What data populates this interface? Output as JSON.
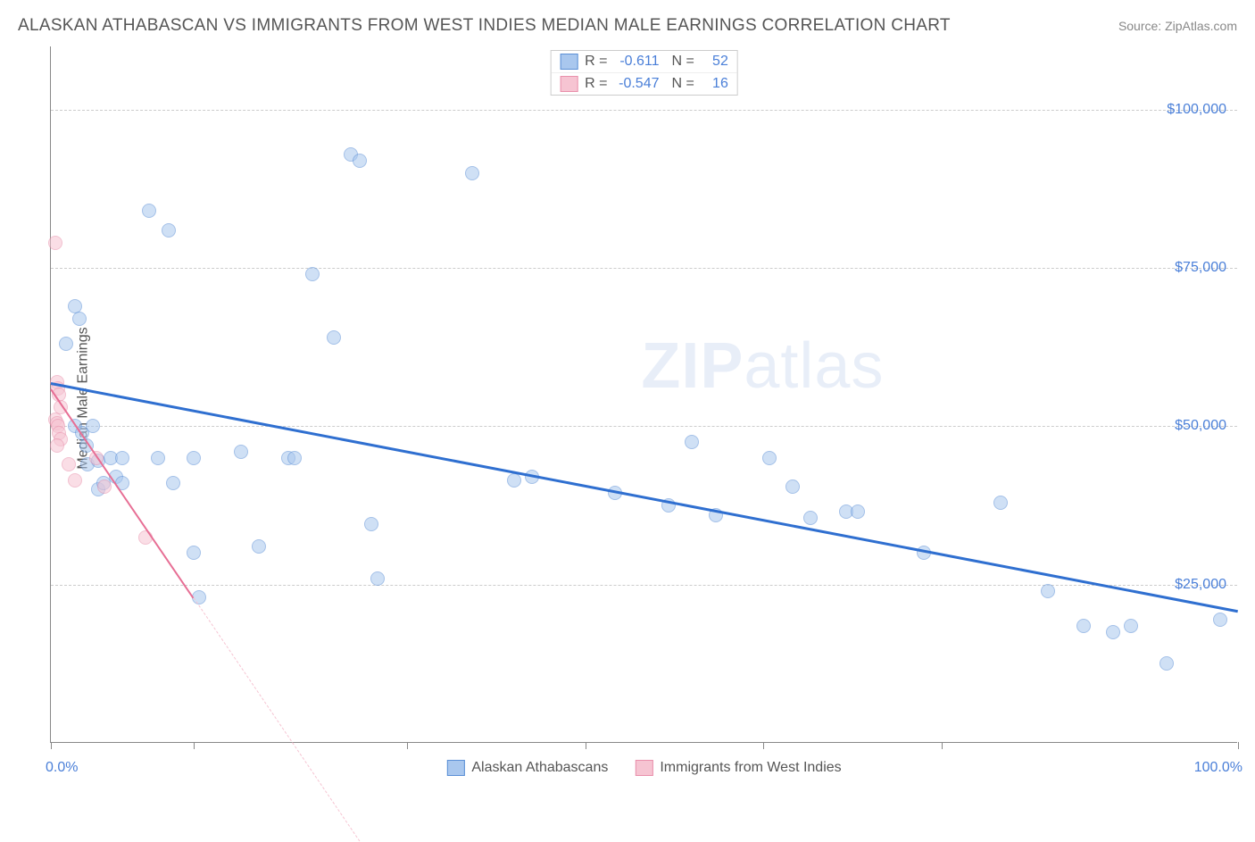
{
  "title": "ALASKAN ATHABASCAN VS IMMIGRANTS FROM WEST INDIES MEDIAN MALE EARNINGS CORRELATION CHART",
  "source": "Source: ZipAtlas.com",
  "ylabel": "Median Male Earnings",
  "watermark_a": "ZIP",
  "watermark_b": "atlas",
  "chart": {
    "type": "scatter",
    "xlim": [
      0,
      100
    ],
    "ylim": [
      0,
      110000
    ],
    "x_ticks": [
      0,
      12,
      30,
      45,
      60,
      75,
      100
    ],
    "x_tick_labels": {
      "0": "0.0%",
      "100": "100.0%"
    },
    "y_gridlines": [
      25000,
      50000,
      75000,
      100000
    ],
    "y_tick_labels": [
      "$25,000",
      "$50,000",
      "$75,000",
      "$100,000"
    ],
    "background_color": "#ffffff",
    "grid_color": "#cccccc",
    "axis_color": "#888888",
    "title_color": "#555555",
    "label_color": "#555555",
    "value_color": "#4a7fd8",
    "title_fontsize": 19,
    "label_fontsize": 16,
    "marker_radius": 8,
    "marker_opacity": 0.55
  },
  "series": [
    {
      "name": "Alaskan Athabascans",
      "fill_color": "#a9c7ee",
      "stroke_color": "#5b8fd6",
      "line_color": "#2f6fd0",
      "R": "-0.611",
      "N": "52",
      "trend": {
        "x1": 0,
        "y1": 57000,
        "x2": 100,
        "y2": 21000,
        "width": 2.5
      },
      "points": [
        [
          1.3,
          63000
        ],
        [
          2.0,
          69000
        ],
        [
          2.4,
          67000
        ],
        [
          2.0,
          50000
        ],
        [
          2.6,
          49000
        ],
        [
          3.0,
          47000
        ],
        [
          3.1,
          44000
        ],
        [
          3.5,
          50000
        ],
        [
          4.0,
          40000
        ],
        [
          4.0,
          44500
        ],
        [
          4.4,
          41000
        ],
        [
          5.0,
          45000
        ],
        [
          5.5,
          42000
        ],
        [
          6.0,
          45000
        ],
        [
          6.0,
          41000
        ],
        [
          8.3,
          84000
        ],
        [
          9.0,
          45000
        ],
        [
          9.9,
          81000
        ],
        [
          10.3,
          41000
        ],
        [
          12.0,
          45000
        ],
        [
          12.0,
          30000
        ],
        [
          12.5,
          23000
        ],
        [
          16.0,
          46000
        ],
        [
          17.5,
          31000
        ],
        [
          20.0,
          45000
        ],
        [
          20.5,
          45000
        ],
        [
          22.0,
          74000
        ],
        [
          23.8,
          64000
        ],
        [
          25.3,
          93000
        ],
        [
          26.0,
          92000
        ],
        [
          27.0,
          34500
        ],
        [
          27.5,
          26000
        ],
        [
          35.5,
          90000
        ],
        [
          39.0,
          41500
        ],
        [
          40.5,
          42000
        ],
        [
          47.5,
          39500
        ],
        [
          52.0,
          37500
        ],
        [
          54.0,
          47500
        ],
        [
          56.0,
          36000
        ],
        [
          60.5,
          45000
        ],
        [
          62.5,
          40500
        ],
        [
          64.0,
          35500
        ],
        [
          67.0,
          36500
        ],
        [
          68.0,
          36500
        ],
        [
          73.5,
          30000
        ],
        [
          80.0,
          38000
        ],
        [
          84.0,
          24000
        ],
        [
          87.0,
          18500
        ],
        [
          89.5,
          17500
        ],
        [
          91.0,
          18500
        ],
        [
          94.0,
          12500
        ],
        [
          98.5,
          19500
        ]
      ]
    },
    {
      "name": "Immigrants from West Indies",
      "fill_color": "#f6c4d2",
      "stroke_color": "#e98fab",
      "line_color": "#e76f95",
      "R": "-0.547",
      "N": "16",
      "trend": {
        "x1": 0,
        "y1": 56000,
        "x2": 12,
        "y2": 23000,
        "width": 2
      },
      "trend_dash": {
        "x1": 12,
        "y1": 23000,
        "x2": 26,
        "y2": -15500
      },
      "points": [
        [
          0.4,
          79000
        ],
        [
          0.5,
          57000
        ],
        [
          0.6,
          56000
        ],
        [
          0.7,
          55000
        ],
        [
          0.8,
          53000
        ],
        [
          0.4,
          51000
        ],
        [
          0.5,
          50500
        ],
        [
          0.6,
          50000
        ],
        [
          0.7,
          49000
        ],
        [
          0.8,
          48000
        ],
        [
          0.5,
          47000
        ],
        [
          1.5,
          44000
        ],
        [
          2.0,
          41500
        ],
        [
          3.8,
          45000
        ],
        [
          4.5,
          40500
        ],
        [
          8.0,
          32500
        ]
      ]
    }
  ],
  "stats_legend_labels": {
    "R": "R =",
    "N": "N ="
  },
  "bottom_legend": [
    "Alaskan Athabascans",
    "Immigrants from West Indies"
  ]
}
